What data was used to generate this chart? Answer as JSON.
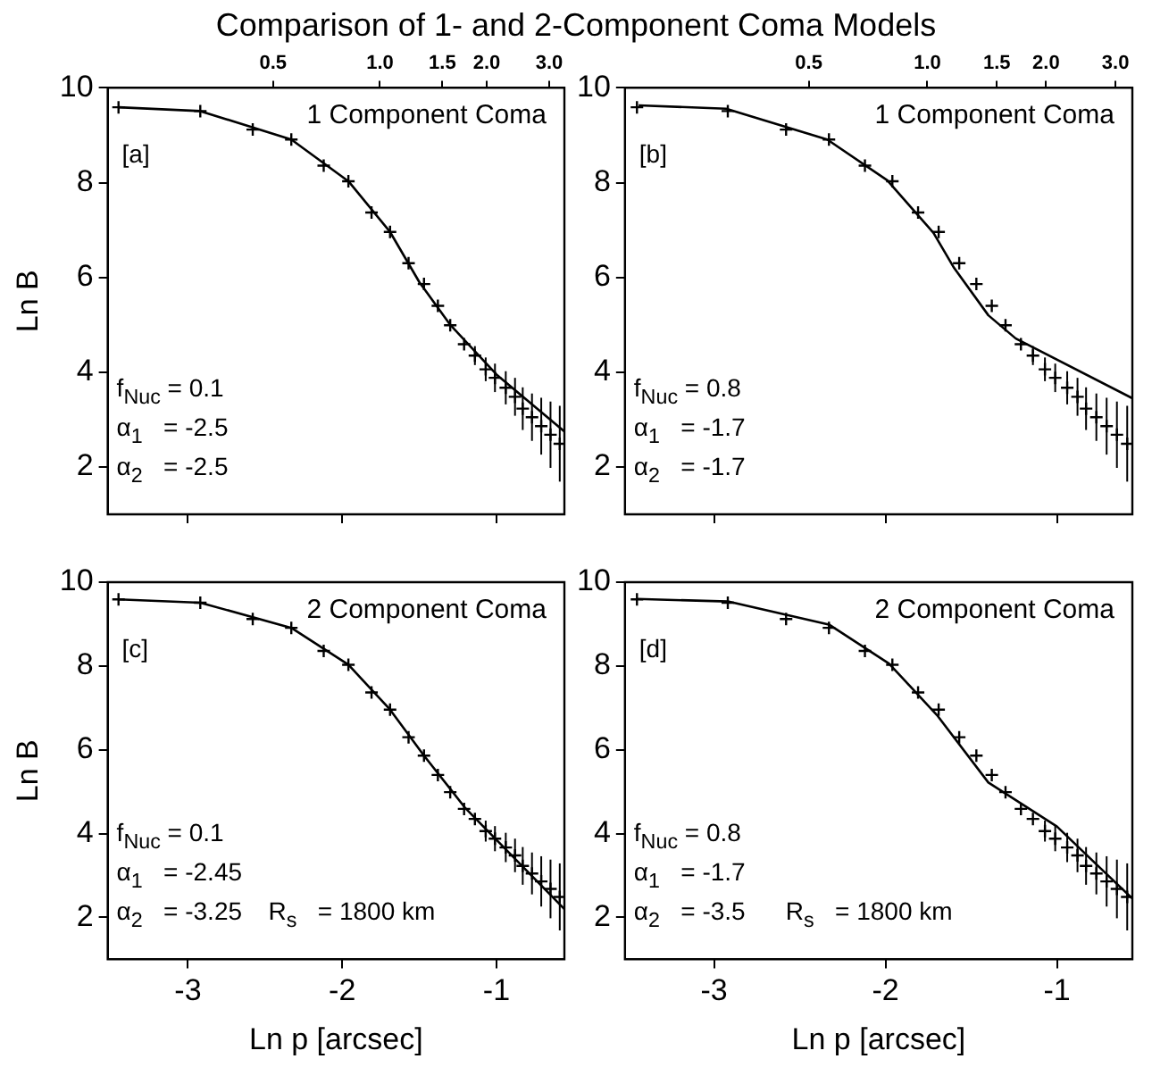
{
  "chart_data": [
    {
      "type": "line",
      "title": "Comparison of 1- and 2-Component Coma Models",
      "ylabel": "Ln B",
      "xlim": [
        -3.52,
        -0.56
      ],
      "ylim": [
        1,
        10
      ],
      "xticks": [
        -3,
        -2,
        -1
      ],
      "yticks": [
        2,
        4,
        6,
        8,
        10
      ],
      "log": "x2",
      "x2lim": [
        0.171,
        3.31
      ],
      "x2ticks": [
        {
          "value": 0.5,
          "label": "0.5"
        },
        {
          "value": 1,
          "label": "1.0"
        },
        {
          "value": 1.5,
          "label": "1.5"
        },
        {
          "value": 2,
          "label": "2.0"
        },
        {
          "value": 3,
          "label": "3.0"
        }
      ],
      "tick_labels": "y",
      "grid": false,
      "legend": false,
      "annotations": [
        "1 Component Coma",
        "[a]",
        "f$_{Nuc}$ = 0.1",
        "α$_{1}$   = -2.5",
        "α$_{2}$   = -2.5"
      ],
      "series": [
        {
          "type": "line",
          "color": "#000000",
          "x": [
            -3.45,
            -2.92,
            -2.33,
            -1.96,
            -1.69,
            -1.5,
            -1.3,
            -1.0,
            -0.56
          ],
          "values": [
            9.59,
            9.51,
            8.91,
            8.03,
            6.96,
            5.9,
            5.0,
            3.95,
            2.75
          ]
        },
        {
          "type": "scatter",
          "marker": "cross",
          "color": "#000000",
          "x": [
            -3.45,
            -2.92,
            -2.58,
            -2.33,
            -2.12,
            -1.96,
            -1.81,
            -1.69,
            -1.57,
            -1.47,
            -1.38,
            -1.3,
            -1.21,
            -1.14,
            -1.07,
            -1.01,
            -0.94,
            -0.88,
            -0.83,
            -0.77,
            -0.71,
            -0.65,
            -0.59
          ],
          "values": [
            9.59,
            9.51,
            9.12,
            8.91,
            8.36,
            8.03,
            7.37,
            6.96,
            6.3,
            5.86,
            5.4,
            4.99,
            4.59,
            4.35,
            4.06,
            3.88,
            3.67,
            3.48,
            3.23,
            3.05,
            2.86,
            2.68,
            2.49
          ],
          "errors": [
            null,
            null,
            null,
            null,
            null,
            null,
            null,
            null,
            null,
            null,
            null,
            null,
            null,
            0.2,
            0.25,
            0.3,
            0.35,
            0.4,
            0.45,
            0.5,
            0.6,
            0.7,
            0.8
          ]
        }
      ]
    },
    {
      "type": "line",
      "xlim": [
        -3.52,
        -0.56
      ],
      "ylim": [
        1,
        10
      ],
      "xticks": [
        -3,
        -2,
        -1
      ],
      "yticks": [
        2,
        4,
        6,
        8,
        10
      ],
      "log": "x2",
      "x2lim": [
        0.171,
        3.31
      ],
      "x2ticks": [
        {
          "value": 0.5,
          "label": "0.5"
        },
        {
          "value": 1,
          "label": "1.0"
        },
        {
          "value": 1.5,
          "label": "1.5"
        },
        {
          "value": 2,
          "label": "2.0"
        },
        {
          "value": 3,
          "label": "3.0"
        }
      ],
      "tick_labels": "y",
      "grid": false,
      "legend": false,
      "annotations": [
        "1 Component Coma",
        "[b]",
        "f$_{Nuc}$ = 0.8",
        "α$_{1}$   = -1.7",
        "α$_{2}$   = -1.7"
      ],
      "series": [
        {
          "type": "line",
          "color": "#000000",
          "x": [
            -3.44,
            -2.93,
            -2.34,
            -1.99,
            -1.72,
            -1.6,
            -1.4,
            -1.24,
            -0.56
          ],
          "values": [
            9.63,
            9.56,
            8.91,
            8.05,
            6.94,
            6.2,
            5.2,
            4.71,
            3.45
          ]
        },
        {
          "type": "scatter",
          "marker": "cross",
          "color": "#000000",
          "x": [
            -3.45,
            -2.92,
            -2.58,
            -2.33,
            -2.12,
            -1.96,
            -1.81,
            -1.69,
            -1.57,
            -1.47,
            -1.38,
            -1.3,
            -1.21,
            -1.14,
            -1.07,
            -1.01,
            -0.94,
            -0.88,
            -0.83,
            -0.77,
            -0.71,
            -0.65,
            -0.59
          ],
          "values": [
            9.59,
            9.51,
            9.12,
            8.91,
            8.36,
            8.03,
            7.37,
            6.96,
            6.3,
            5.86,
            5.4,
            4.99,
            4.59,
            4.35,
            4.06,
            3.88,
            3.67,
            3.48,
            3.23,
            3.05,
            2.86,
            2.68,
            2.49
          ],
          "errors": [
            null,
            null,
            null,
            null,
            null,
            null,
            null,
            null,
            null,
            null,
            null,
            null,
            null,
            0.2,
            0.25,
            0.3,
            0.35,
            0.4,
            0.45,
            0.5,
            0.6,
            0.7,
            0.8
          ]
        }
      ]
    },
    {
      "type": "line",
      "xlabel": "Ln p [arcsec]",
      "ylabel": "Ln B",
      "xlim": [
        -3.52,
        -0.56
      ],
      "ylim": [
        1,
        10
      ],
      "xticks": [
        -3,
        -2,
        -1
      ],
      "yticks": [
        2,
        4,
        6,
        8,
        10
      ],
      "grid": false,
      "legend": false,
      "annotations": [
        "2 Component Coma",
        "[c]",
        "f$_{Nuc}$ = 0.1",
        "α$_{1}$   = -2.45",
        "α$_{2}$   = -3.25",
        "R$_{s}$   = 1800 km"
      ],
      "series": [
        {
          "type": "line",
          "color": "#000000",
          "x": [
            -3.45,
            -2.92,
            -2.33,
            -1.96,
            -1.69,
            -1.47,
            -1.2,
            -1.0,
            -0.56
          ],
          "values": [
            9.59,
            9.51,
            8.91,
            8.03,
            6.96,
            5.86,
            4.6,
            3.85,
            2.2
          ]
        },
        {
          "type": "scatter",
          "marker": "cross",
          "color": "#000000",
          "x": [
            -3.45,
            -2.92,
            -2.58,
            -2.33,
            -2.12,
            -1.96,
            -1.81,
            -1.69,
            -1.57,
            -1.47,
            -1.38,
            -1.3,
            -1.21,
            -1.14,
            -1.07,
            -1.01,
            -0.94,
            -0.88,
            -0.83,
            -0.77,
            -0.71,
            -0.65,
            -0.59
          ],
          "values": [
            9.59,
            9.51,
            9.12,
            8.91,
            8.36,
            8.03,
            7.37,
            6.96,
            6.3,
            5.86,
            5.4,
            4.99,
            4.59,
            4.35,
            4.06,
            3.88,
            3.67,
            3.48,
            3.23,
            3.05,
            2.86,
            2.68,
            2.49
          ],
          "errors": [
            null,
            null,
            null,
            null,
            null,
            null,
            null,
            null,
            null,
            null,
            null,
            null,
            null,
            null,
            0.25,
            0.3,
            0.35,
            0.4,
            0.45,
            0.5,
            0.6,
            0.7,
            0.8
          ]
        }
      ]
    },
    {
      "type": "line",
      "xlabel": "Ln p [arcsec]",
      "xlim": [
        -3.52,
        -0.56
      ],
      "ylim": [
        1,
        10
      ],
      "xticks": [
        -3,
        -2,
        -1
      ],
      "yticks": [
        2,
        4,
        6,
        8,
        10
      ],
      "grid": false,
      "legend": false,
      "annotations": [
        "2 Component Coma",
        "[d]",
        "f$_{Nuc}$ = 0.8",
        "α$_{1}$   = -1.7",
        "α$_{2}$   = -3.5",
        "R$_{s}$   = 1800 km"
      ],
      "series": [
        {
          "type": "line",
          "color": "#000000",
          "x": [
            -3.45,
            -2.92,
            -2.33,
            -1.98,
            -1.7,
            -1.4,
            -1.0,
            -0.75,
            -0.56
          ],
          "values": [
            9.6,
            9.54,
            8.99,
            8.06,
            6.83,
            5.22,
            4.17,
            3.19,
            2.45
          ]
        },
        {
          "type": "scatter",
          "marker": "cross",
          "color": "#000000",
          "x": [
            -3.45,
            -2.92,
            -2.58,
            -2.33,
            -2.12,
            -1.96,
            -1.81,
            -1.69,
            -1.57,
            -1.47,
            -1.38,
            -1.3,
            -1.21,
            -1.14,
            -1.07,
            -1.01,
            -0.94,
            -0.88,
            -0.83,
            -0.77,
            -0.71,
            -0.65,
            -0.59
          ],
          "values": [
            9.59,
            9.51,
            9.12,
            8.91,
            8.36,
            8.03,
            7.37,
            6.96,
            6.3,
            5.86,
            5.4,
            4.99,
            4.59,
            4.35,
            4.06,
            3.88,
            3.67,
            3.48,
            3.23,
            3.05,
            2.86,
            2.68,
            2.49
          ],
          "errors": [
            null,
            null,
            null,
            null,
            null,
            null,
            null,
            null,
            null,
            null,
            null,
            null,
            null,
            null,
            0.25,
            0.3,
            0.35,
            0.4,
            0.45,
            0.5,
            0.6,
            0.7,
            0.8
          ]
        }
      ]
    }
  ]
}
